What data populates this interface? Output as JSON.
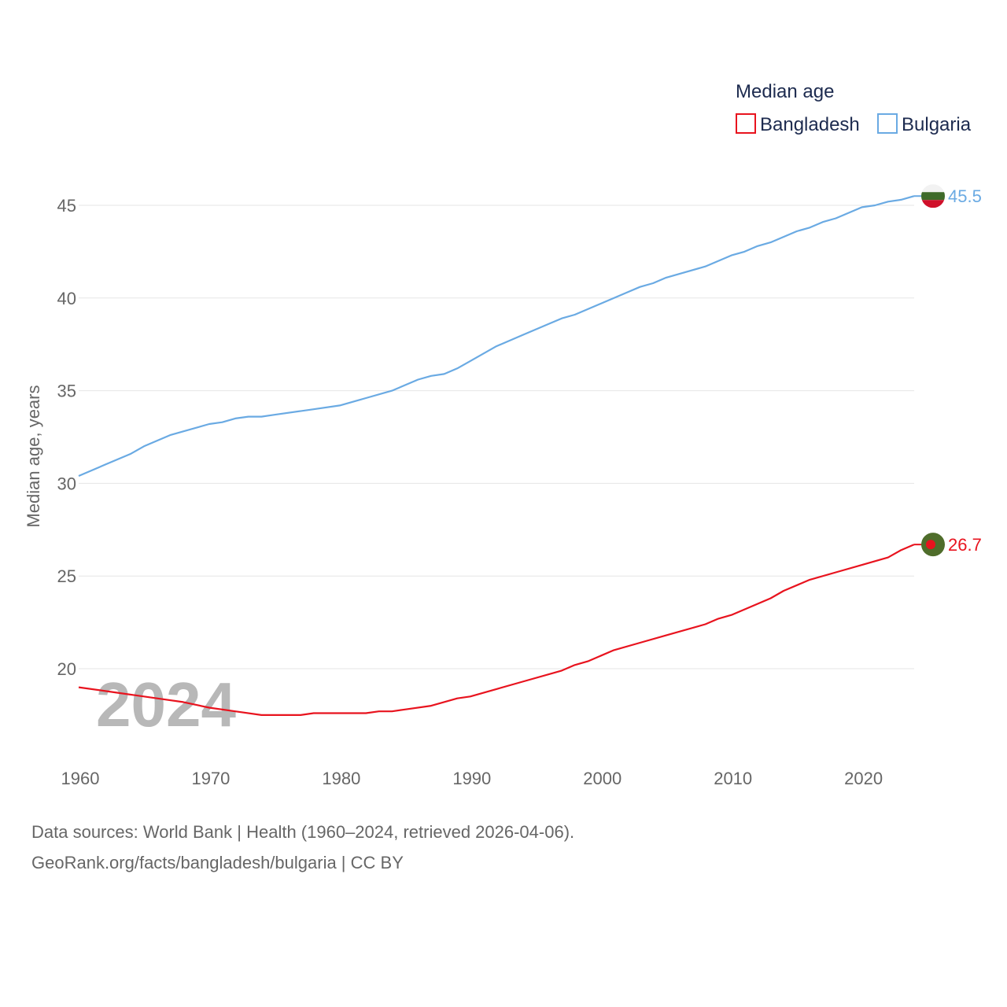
{
  "chart_data": {
    "type": "line",
    "legend_title": "Median age",
    "ylabel": "Median age, years",
    "xlabel": "",
    "xlim": [
      1960,
      2024
    ],
    "ylim": [
      16,
      48
    ],
    "y_ticks": [
      20,
      25,
      30,
      35,
      40,
      45
    ],
    "x_ticks": [
      1960,
      1970,
      1980,
      1990,
      2000,
      2010,
      2020
    ],
    "grid": true,
    "legend_position": "top-right",
    "watermark_year": "2024",
    "series": [
      {
        "name": "Bangladesh",
        "color": "#e8131e",
        "flag_icon": "bangladesh-flag-icon",
        "end_label": "26.7",
        "x": [
          1960,
          1963,
          1965,
          1968,
          1970,
          1972,
          1974,
          1977,
          1978,
          1980,
          1982,
          1983,
          1984,
          1985,
          1987,
          1989,
          1990,
          1992,
          1994,
          1997,
          1998,
          1999,
          2001,
          2003,
          2005,
          2008,
          2009,
          2010,
          2013,
          2014,
          2016,
          2018,
          2020,
          2022,
          2023,
          2024
        ],
        "values": [
          19.0,
          18.7,
          18.5,
          18.2,
          17.9,
          17.7,
          17.5,
          17.5,
          17.6,
          17.6,
          17.6,
          17.7,
          17.7,
          17.8,
          18.0,
          18.4,
          18.5,
          18.9,
          19.3,
          19.9,
          20.2,
          20.4,
          21.0,
          21.4,
          21.8,
          22.4,
          22.7,
          22.9,
          23.8,
          24.2,
          24.8,
          25.2,
          25.6,
          26.0,
          26.4,
          26.7
        ]
      },
      {
        "name": "Bulgaria",
        "color": "#6aaae3",
        "flag_icon": "bulgaria-flag-icon",
        "end_label": "45.5",
        "x": [
          1960,
          1962,
          1964,
          1965,
          1967,
          1970,
          1971,
          1972,
          1973,
          1974,
          1975,
          1978,
          1980,
          1982,
          1984,
          1986,
          1987,
          1988,
          1989,
          1990,
          1992,
          1994,
          1996,
          1997,
          1998,
          2000,
          2002,
          2003,
          2004,
          2005,
          2006,
          2008,
          2010,
          2011,
          2012,
          2013,
          2015,
          2016,
          2017,
          2018,
          2020,
          2021,
          2022,
          2023,
          2024
        ],
        "values": [
          30.4,
          31.0,
          31.6,
          32.0,
          32.6,
          33.2,
          33.3,
          33.5,
          33.6,
          33.6,
          33.7,
          34.0,
          34.2,
          34.6,
          35.0,
          35.6,
          35.8,
          35.9,
          36.2,
          36.6,
          37.4,
          38.0,
          38.6,
          38.9,
          39.1,
          39.7,
          40.3,
          40.6,
          40.8,
          41.1,
          41.3,
          41.7,
          42.3,
          42.5,
          42.8,
          43.0,
          43.6,
          43.8,
          44.1,
          44.3,
          44.9,
          45.0,
          45.2,
          45.3,
          45.5
        ]
      }
    ]
  },
  "footer": {
    "source_line": "Data sources: World Bank | Health (1960–2024, retrieved 2026-04-06).",
    "credit_line": "GeoRank.org/facts/bangladesh/bulgaria | CC BY"
  }
}
